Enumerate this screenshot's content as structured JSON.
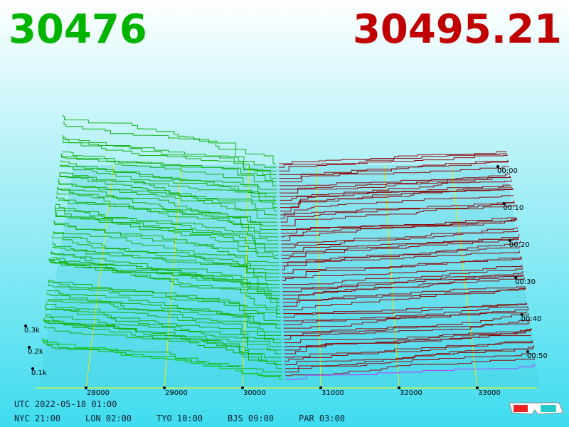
{
  "header": {
    "bid": "30476",
    "ask": "30495.21"
  },
  "axes": {
    "price_ticks": [
      28000,
      29000,
      30000,
      31000,
      32000,
      33000
    ],
    "time_ticks": [
      "00:00",
      "00:10",
      "00:20",
      "00:30",
      "00:40",
      "00:50"
    ],
    "volume_ticks": [
      "0.3k",
      "0.2k",
      "0.1k"
    ]
  },
  "footer": {
    "utc": "UTC 2022-05-18 01:00",
    "clocks": [
      "NYC 21:00",
      "LON 02:00",
      "TYO 10:00",
      "BJS 09:00",
      "PAR 03:00"
    ]
  }
}
